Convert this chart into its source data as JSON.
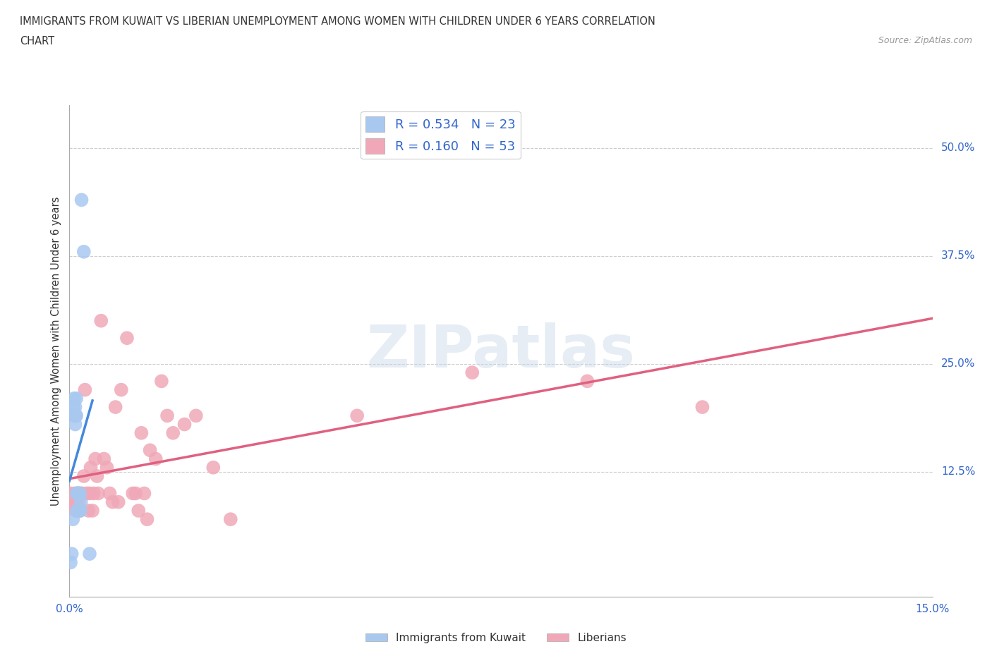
{
  "title_line1": "IMMIGRANTS FROM KUWAIT VS LIBERIAN UNEMPLOYMENT AMONG WOMEN WITH CHILDREN UNDER 6 YEARS CORRELATION",
  "title_line2": "CHART",
  "source": "Source: ZipAtlas.com",
  "ylabel": "Unemployment Among Women with Children Under 6 years",
  "xlim": [
    0.0,
    0.15
  ],
  "ylim": [
    -0.02,
    0.55
  ],
  "ytick_labels_right": [
    "50.0%",
    "37.5%",
    "25.0%",
    "12.5%"
  ],
  "ytick_vals_right": [
    0.5,
    0.375,
    0.25,
    0.125
  ],
  "grid_color": "#cccccc",
  "kuwait_color": "#a8c8f0",
  "liberian_color": "#f0a8b8",
  "kuwait_trend_color": "#4488dd",
  "liberian_trend_color": "#e06080",
  "R_kuwait": 0.534,
  "N_kuwait": 23,
  "R_liberian": 0.16,
  "N_liberian": 53,
  "legend_label_kuwait": "Immigrants from Kuwait",
  "legend_label_liberian": "Liberians",
  "kuwait_x": [
    0.0002,
    0.0004,
    0.0006,
    0.0007,
    0.0008,
    0.0009,
    0.001,
    0.001,
    0.0011,
    0.0012,
    0.0012,
    0.0013,
    0.0013,
    0.0014,
    0.0015,
    0.0016,
    0.0017,
    0.0018,
    0.0019,
    0.002,
    0.0021,
    0.0025,
    0.0035
  ],
  "kuwait_y": [
    0.02,
    0.03,
    0.07,
    0.2,
    0.21,
    0.19,
    0.2,
    0.18,
    0.19,
    0.19,
    0.21,
    0.1,
    0.08,
    0.1,
    0.1,
    0.1,
    0.08,
    0.1,
    0.08,
    0.09,
    0.44,
    0.38,
    0.03
  ],
  "liberian_x": [
    0.0002,
    0.0005,
    0.0007,
    0.0009,
    0.001,
    0.0011,
    0.0012,
    0.0013,
    0.0014,
    0.0015,
    0.0016,
    0.0018,
    0.002,
    0.0022,
    0.0025,
    0.0027,
    0.003,
    0.0033,
    0.0035,
    0.0037,
    0.004,
    0.0042,
    0.0045,
    0.0048,
    0.005,
    0.0055,
    0.006,
    0.0065,
    0.007,
    0.0075,
    0.008,
    0.0085,
    0.009,
    0.01,
    0.011,
    0.0115,
    0.012,
    0.0125,
    0.013,
    0.0135,
    0.014,
    0.015,
    0.016,
    0.017,
    0.018,
    0.02,
    0.022,
    0.025,
    0.028,
    0.05,
    0.07,
    0.09,
    0.11
  ],
  "liberian_y": [
    0.1,
    0.09,
    0.09,
    0.1,
    0.09,
    0.08,
    0.09,
    0.1,
    0.08,
    0.1,
    0.09,
    0.08,
    0.1,
    0.1,
    0.12,
    0.22,
    0.1,
    0.08,
    0.1,
    0.13,
    0.08,
    0.1,
    0.14,
    0.12,
    0.1,
    0.3,
    0.14,
    0.13,
    0.1,
    0.09,
    0.2,
    0.09,
    0.22,
    0.28,
    0.1,
    0.1,
    0.08,
    0.17,
    0.1,
    0.07,
    0.15,
    0.14,
    0.23,
    0.19,
    0.17,
    0.18,
    0.19,
    0.13,
    0.07,
    0.19,
    0.24,
    0.23,
    0.2
  ],
  "background_color": "#ffffff",
  "plot_bg_color": "#ffffff"
}
